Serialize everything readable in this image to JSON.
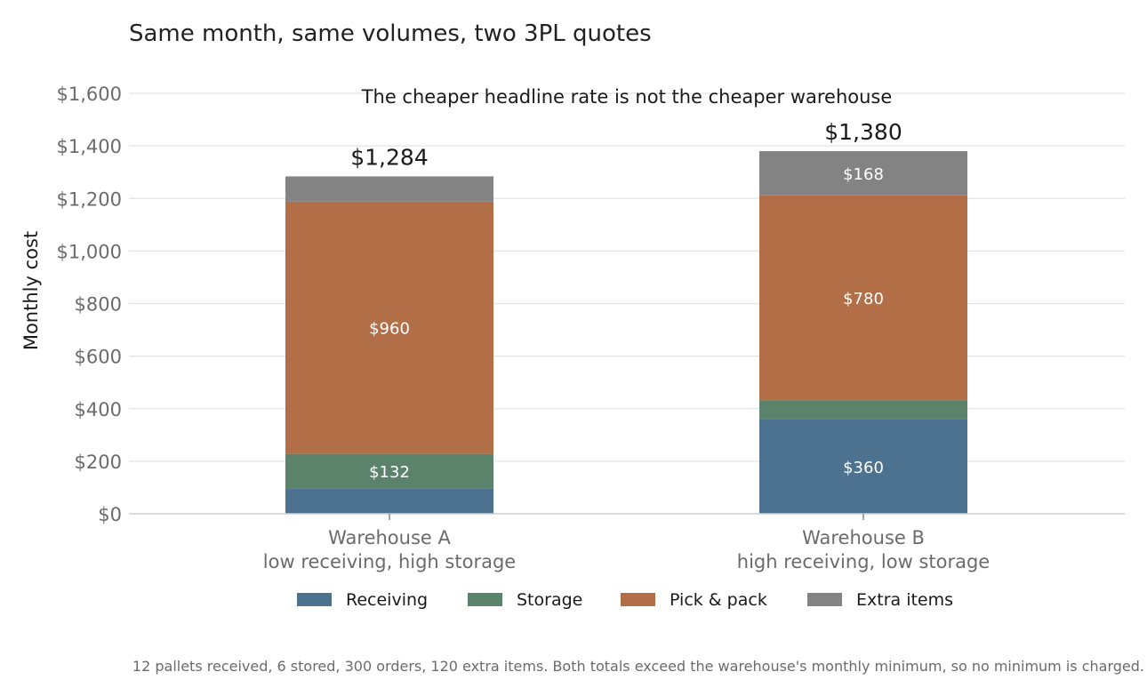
{
  "chart_data": {
    "type": "bar",
    "stacked": true,
    "title": "Same month, same volumes, two 3PL quotes",
    "subtitle": "The cheaper headline rate is not the cheaper warehouse",
    "xlabel": "",
    "ylabel": "Monthly cost",
    "ylim": [
      0,
      1600
    ],
    "yticks": [
      0,
      200,
      400,
      600,
      800,
      1000,
      1200,
      1400,
      1600
    ],
    "ytick_labels": [
      "$0",
      "$200",
      "$400",
      "$600",
      "$800",
      "$1,000",
      "$1,200",
      "$1,400",
      "$1,600"
    ],
    "grid": true,
    "legend_position": "bottom",
    "categories": [
      {
        "name": "Warehouse A",
        "detail": "low receiving, high storage"
      },
      {
        "name": "Warehouse B",
        "detail": "high receiving, low storage"
      }
    ],
    "series": [
      {
        "name": "Receiving",
        "color": "#4d7290",
        "values": [
          96,
          360
        ],
        "labels": [
          "",
          "$360"
        ]
      },
      {
        "name": "Storage",
        "color": "#5b836b",
        "values": [
          132,
          72
        ],
        "labels": [
          "$132",
          ""
        ]
      },
      {
        "name": "Pick & pack",
        "color": "#b26f47",
        "values": [
          960,
          780
        ],
        "labels": [
          "$960",
          "$780"
        ]
      },
      {
        "name": "Extra items",
        "color": "#838383",
        "values": [
          96,
          168
        ],
        "labels": [
          "",
          "$168"
        ]
      }
    ],
    "totals": [
      1284,
      1380
    ],
    "total_labels": [
      "$1,284",
      "$1,380"
    ],
    "caption": "12 pallets received, 6 stored, 300 orders, 120 extra items. Both totals exceed the warehouse's monthly minimum, so no minimum is charged."
  }
}
